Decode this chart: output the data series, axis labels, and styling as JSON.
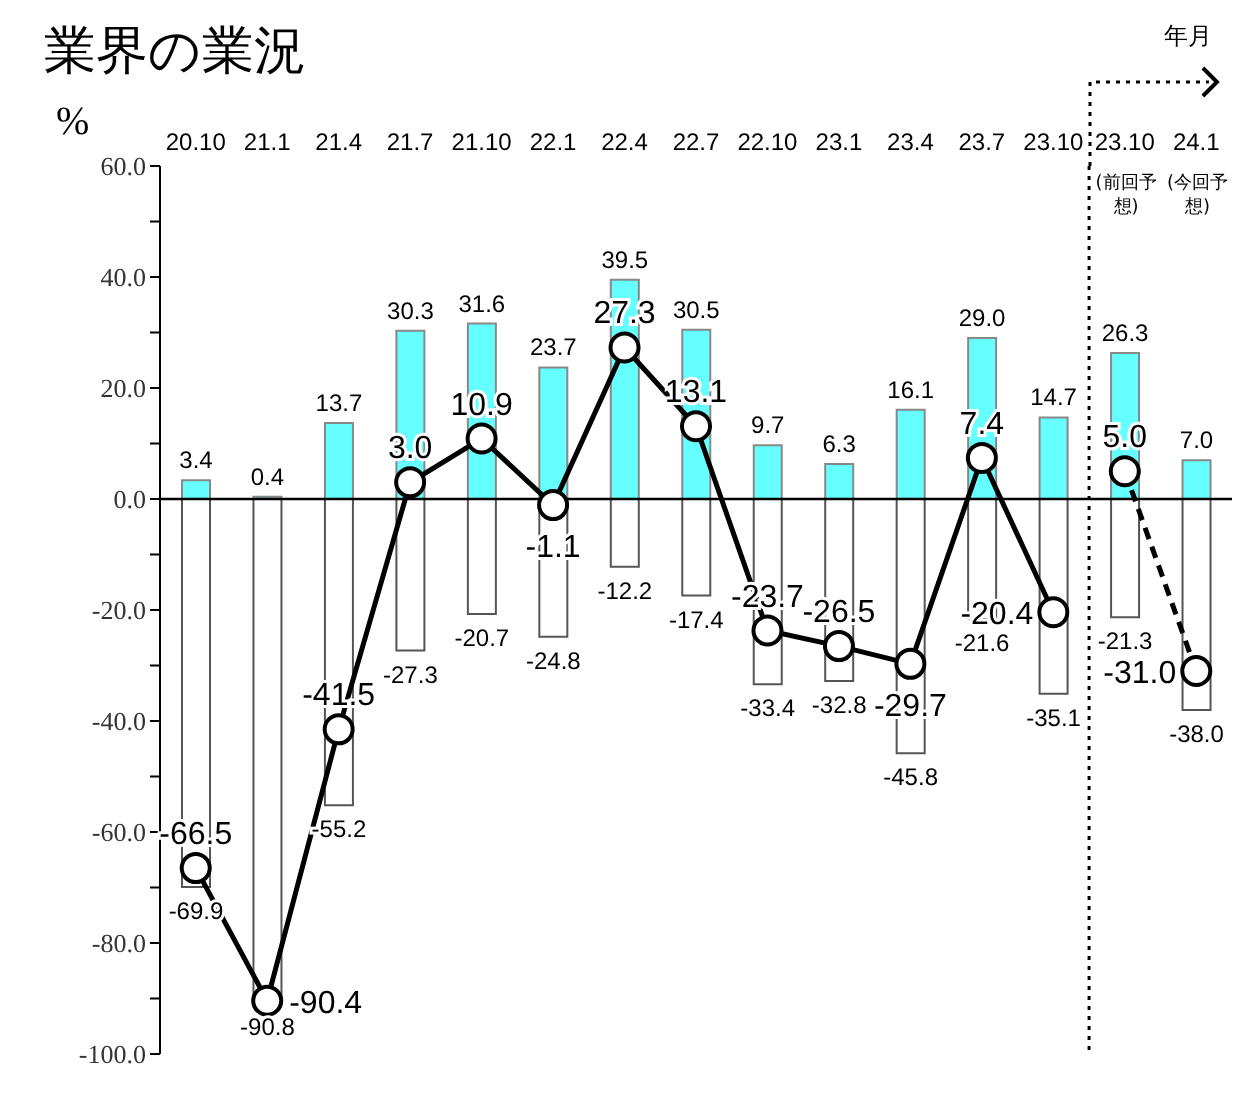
{
  "chart_data": {
    "type": "bar",
    "title": "業界の業況",
    "ylabel": "%",
    "stacked": true,
    "legend": false,
    "grid": false,
    "marker": "circle",
    "categories": [
      "20.10",
      "21.1",
      "21.4",
      "21.7",
      "21.10",
      "22.1",
      "22.4",
      "22.7",
      "22.10",
      "23.1",
      "23.4",
      "23.7",
      "23.10",
      "23.10",
      "24.1"
    ],
    "series": [
      {
        "color": "#66ffff",
        "values": [
          3.4,
          0.4,
          13.7,
          30.3,
          31.6,
          23.7,
          39.5,
          30.5,
          9.7,
          6.3,
          16.1,
          29.0,
          14.7,
          26.3,
          7.0
        ],
        "value_labels": [
          "3.4",
          "0.4",
          "13.7",
          "30.3",
          "31.6",
          "23.7",
          "39.5",
          "30.5",
          "9.7",
          "6.3",
          "16.1",
          "29.0",
          "14.7",
          "26.3",
          "7.0"
        ]
      },
      {
        "color": "#ffffff",
        "values": [
          -69.9,
          -90.8,
          -55.2,
          -27.3,
          -20.7,
          -24.8,
          -12.2,
          -17.4,
          -33.4,
          -32.8,
          -45.8,
          -21.6,
          -35.1,
          -21.3,
          -38.0
        ],
        "value_labels": [
          "-69.9",
          "-90.8",
          "-55.2",
          "-27.3",
          "-20.7",
          "-24.8",
          "-12.2",
          "-17.4",
          "-33.4",
          "-32.8",
          "-45.8",
          "-21.6",
          "-35.1",
          "-21.3",
          "-38.0"
        ]
      },
      {
        "type": "line",
        "color": "#000000",
        "line_style": "solid",
        "values": [
          -66.5,
          -90.4,
          -41.5,
          3.0,
          10.9,
          -1.1,
          27.3,
          13.1,
          -23.7,
          -26.5,
          -29.7,
          7.4,
          -20.4,
          null,
          null
        ],
        "value_labels": [
          "-66.5",
          "-90.4",
          "-41.5",
          "3.0",
          "10.9",
          "-1.1",
          "27.3",
          "13.1",
          "-23.7",
          "-26.5",
          "-29.7",
          "7.4",
          "-20.4",
          null,
          null
        ]
      },
      {
        "type": "line",
        "color": "#000000",
        "line_style": "dashed",
        "values": [
          null,
          null,
          null,
          null,
          null,
          null,
          null,
          null,
          null,
          null,
          null,
          null,
          null,
          5.0,
          -31.0
        ],
        "value_labels": [
          null,
          null,
          null,
          null,
          null,
          null,
          null,
          null,
          null,
          null,
          null,
          null,
          null,
          "5.0",
          "-31.0"
        ]
      }
    ],
    "ylim": [
      -100,
      60
    ],
    "yticks": [
      {
        "value": -100,
        "label": "-100.0"
      },
      {
        "value": -90,
        "label": null
      },
      {
        "value": -80,
        "label": "-80.0"
      },
      {
        "value": -70,
        "label": null
      },
      {
        "value": -60,
        "label": "-60.0"
      },
      {
        "value": -50,
        "label": null
      },
      {
        "value": -40,
        "label": "-40.0"
      },
      {
        "value": -30,
        "label": null
      },
      {
        "value": -20,
        "label": "-20.0"
      },
      {
        "value": -10,
        "label": null
      },
      {
        "value": 0,
        "label": "0.0"
      },
      {
        "value": 10,
        "label": null
      },
      {
        "value": 20,
        "label": "20.0"
      },
      {
        "value": 30,
        "label": null
      },
      {
        "value": 40,
        "label": "40.0"
      },
      {
        "value": 50,
        "label": null
      },
      {
        "value": 60,
        "label": "60.0"
      }
    ],
    "ref_lines": [
      {
        "axis": "y",
        "value": 0,
        "color": "#000000"
      },
      {
        "axis": "x",
        "value": "23.10",
        "color": "#000000",
        "line_style": "dotted"
      }
    ],
    "annotations": [
      "年月",
      "(前回予想)",
      "(今回予想)"
    ]
  }
}
